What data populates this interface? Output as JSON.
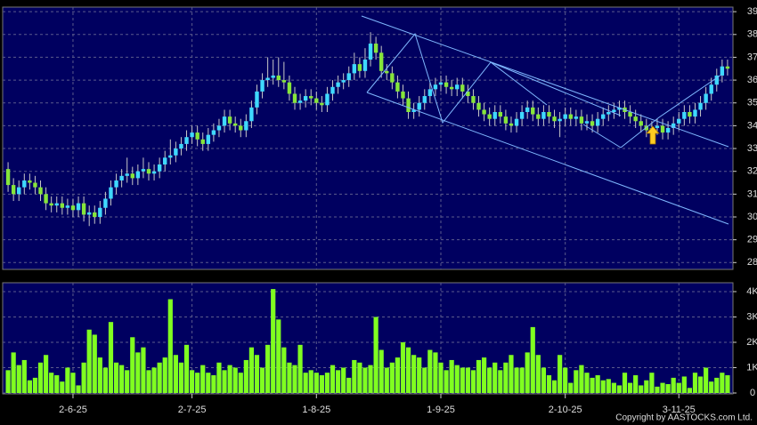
{
  "chart_data": [
    {
      "type": "candlestick",
      "up_color": "#3fd9ff",
      "down_color": "#86e63a",
      "grid": true,
      "ylim": [
        27.7,
        39.2
      ],
      "yticks": [
        28,
        29,
        30,
        31,
        32,
        33,
        34,
        35,
        36,
        37,
        38,
        39
      ],
      "xlim": [
        -1,
        134
      ],
      "xticks": [
        {
          "value": 12,
          "label": "2-6-25"
        },
        {
          "value": 34,
          "label": "2-7-25"
        },
        {
          "value": 57,
          "label": "1-8-25"
        },
        {
          "value": 80,
          "label": "1-9-25"
        },
        {
          "value": 103,
          "label": "2-10-25"
        },
        {
          "value": 124,
          "label": "3-11-25"
        }
      ],
      "ohlc": [
        [
          32.1,
          32.4,
          31.1,
          31.4
        ],
        [
          31.4,
          31.7,
          30.7,
          31.0
        ],
        [
          31.0,
          31.6,
          30.7,
          31.3
        ],
        [
          31.3,
          31.9,
          31.0,
          31.6
        ],
        [
          31.6,
          31.9,
          31.2,
          31.5
        ],
        [
          31.5,
          31.8,
          31.0,
          31.3
        ],
        [
          31.3,
          31.6,
          30.7,
          31.0
        ],
        [
          31.0,
          31.3,
          30.3,
          30.6
        ],
        [
          30.6,
          30.9,
          30.2,
          30.5
        ],
        [
          30.5,
          30.9,
          30.2,
          30.6
        ],
        [
          30.6,
          30.9,
          30.1,
          30.4
        ],
        [
          30.4,
          30.8,
          30.1,
          30.5
        ],
        [
          30.5,
          30.8,
          30.0,
          30.3
        ],
        [
          30.3,
          30.9,
          30.0,
          30.6
        ],
        [
          30.6,
          30.9,
          29.8,
          30.1
        ],
        [
          30.1,
          30.5,
          29.6,
          30.2
        ],
        [
          30.2,
          30.5,
          29.7,
          30.0
        ],
        [
          30.0,
          30.7,
          29.7,
          30.4
        ],
        [
          30.4,
          31.1,
          30.1,
          30.8
        ],
        [
          30.8,
          31.6,
          30.5,
          31.3
        ],
        [
          31.3,
          31.9,
          31.0,
          31.6
        ],
        [
          31.6,
          32.1,
          31.3,
          31.8
        ],
        [
          31.8,
          32.6,
          31.5,
          31.9
        ],
        [
          31.9,
          32.2,
          31.4,
          31.7
        ],
        [
          31.7,
          32.3,
          31.4,
          32.0
        ],
        [
          32.0,
          32.6,
          31.7,
          32.1
        ],
        [
          32.1,
          32.4,
          31.6,
          31.9
        ],
        [
          31.9,
          32.3,
          31.6,
          32.0
        ],
        [
          32.0,
          32.6,
          31.7,
          32.3
        ],
        [
          32.3,
          32.9,
          32.0,
          32.6
        ],
        [
          32.6,
          33.4,
          32.3,
          32.7
        ],
        [
          32.7,
          33.3,
          32.4,
          33.0
        ],
        [
          33.0,
          33.5,
          32.7,
          33.2
        ],
        [
          33.2,
          33.8,
          32.9,
          33.5
        ],
        [
          33.5,
          34.0,
          33.2,
          33.7
        ],
        [
          33.7,
          34.0,
          33.1,
          33.4
        ],
        [
          33.4,
          33.7,
          32.9,
          33.2
        ],
        [
          33.2,
          33.9,
          32.9,
          33.6
        ],
        [
          33.6,
          34.1,
          33.3,
          33.8
        ],
        [
          33.8,
          34.3,
          33.5,
          34.0
        ],
        [
          34.0,
          34.7,
          33.7,
          34.4
        ],
        [
          34.4,
          34.7,
          33.8,
          34.1
        ],
        [
          34.1,
          34.4,
          33.7,
          34.0
        ],
        [
          34.0,
          34.3,
          33.5,
          33.8
        ],
        [
          33.8,
          34.5,
          33.5,
          34.2
        ],
        [
          34.2,
          35.1,
          33.9,
          34.8
        ],
        [
          34.8,
          35.8,
          34.5,
          35.5
        ],
        [
          35.5,
          36.3,
          35.2,
          36.0
        ],
        [
          36.0,
          37.0,
          35.7,
          36.1
        ],
        [
          36.1,
          36.9,
          35.8,
          36.2
        ],
        [
          36.2,
          37.0,
          35.7,
          36.0
        ],
        [
          36.0,
          36.8,
          35.6,
          35.9
        ],
        [
          35.9,
          36.2,
          35.1,
          35.4
        ],
        [
          35.4,
          35.7,
          34.7,
          35.0
        ],
        [
          35.0,
          35.4,
          34.7,
          35.1
        ],
        [
          35.1,
          35.6,
          34.8,
          35.3
        ],
        [
          35.3,
          35.6,
          34.9,
          35.2
        ],
        [
          35.2,
          35.5,
          34.7,
          35.0
        ],
        [
          35.0,
          35.3,
          34.6,
          34.9
        ],
        [
          34.9,
          35.7,
          34.6,
          35.4
        ],
        [
          35.4,
          36.0,
          35.1,
          35.7
        ],
        [
          35.7,
          36.2,
          35.4,
          35.9
        ],
        [
          35.9,
          36.3,
          35.6,
          36.0
        ],
        [
          36.0,
          36.6,
          35.7,
          36.3
        ],
        [
          36.3,
          37.2,
          36.0,
          36.7
        ],
        [
          36.7,
          37.0,
          36.1,
          36.4
        ],
        [
          36.4,
          37.4,
          36.1,
          36.9
        ],
        [
          36.9,
          38.1,
          36.6,
          37.6
        ],
        [
          37.6,
          37.9,
          36.9,
          37.2
        ],
        [
          37.2,
          37.5,
          36.1,
          36.4
        ],
        [
          36.4,
          36.7,
          36.0,
          36.3
        ],
        [
          36.3,
          36.6,
          35.6,
          35.9
        ],
        [
          35.9,
          36.2,
          35.2,
          35.5
        ],
        [
          35.5,
          35.8,
          34.9,
          35.2
        ],
        [
          35.2,
          35.5,
          34.3,
          34.6
        ],
        [
          34.6,
          35.0,
          34.3,
          34.7
        ],
        [
          34.7,
          35.3,
          34.4,
          35.0
        ],
        [
          35.0,
          35.6,
          34.7,
          35.3
        ],
        [
          35.3,
          35.9,
          35.0,
          35.6
        ],
        [
          35.6,
          36.1,
          35.3,
          35.8
        ],
        [
          35.8,
          36.2,
          35.5,
          35.9
        ],
        [
          35.9,
          36.2,
          35.4,
          35.7
        ],
        [
          35.7,
          36.0,
          35.3,
          35.6
        ],
        [
          35.6,
          36.1,
          35.3,
          35.8
        ],
        [
          35.8,
          36.1,
          35.2,
          35.5
        ],
        [
          35.5,
          35.8,
          35.0,
          35.3
        ],
        [
          35.3,
          35.6,
          34.7,
          35.0
        ],
        [
          35.0,
          35.3,
          34.4,
          34.7
        ],
        [
          34.7,
          35.0,
          34.2,
          34.5
        ],
        [
          34.5,
          34.8,
          34.0,
          34.3
        ],
        [
          34.3,
          34.9,
          34.0,
          34.6
        ],
        [
          34.6,
          34.9,
          34.1,
          34.4
        ],
        [
          34.4,
          34.7,
          33.8,
          34.1
        ],
        [
          34.1,
          34.4,
          33.7,
          34.0
        ],
        [
          34.0,
          34.6,
          33.7,
          34.3
        ],
        [
          34.3,
          34.9,
          34.0,
          34.6
        ],
        [
          34.6,
          35.1,
          34.3,
          34.8
        ],
        [
          34.8,
          35.1,
          34.2,
          34.5
        ],
        [
          34.5,
          34.8,
          34.0,
          34.3
        ],
        [
          34.3,
          34.9,
          34.0,
          34.6
        ],
        [
          34.6,
          34.9,
          34.1,
          34.4
        ],
        [
          34.4,
          34.7,
          33.9,
          34.2
        ],
        [
          34.2,
          34.6,
          33.5,
          34.3
        ],
        [
          34.3,
          34.8,
          34.0,
          34.5
        ],
        [
          34.5,
          34.8,
          34.0,
          34.3
        ],
        [
          34.3,
          34.7,
          34.0,
          34.4
        ],
        [
          34.4,
          34.7,
          33.8,
          34.1
        ],
        [
          34.1,
          34.5,
          33.8,
          34.2
        ],
        [
          34.2,
          34.5,
          33.7,
          34.0
        ],
        [
          34.0,
          34.6,
          33.7,
          34.3
        ],
        [
          34.3,
          34.8,
          34.0,
          34.5
        ],
        [
          34.5,
          34.9,
          34.2,
          34.6
        ],
        [
          34.6,
          35.0,
          34.3,
          34.7
        ],
        [
          34.7,
          35.1,
          34.4,
          34.8
        ],
        [
          34.8,
          35.1,
          34.3,
          34.6
        ],
        [
          34.6,
          34.9,
          34.1,
          34.4
        ],
        [
          34.4,
          34.7,
          33.9,
          34.2
        ],
        [
          34.2,
          34.5,
          33.7,
          34.0
        ],
        [
          34.0,
          34.3,
          33.5,
          33.8
        ],
        [
          33.8,
          34.2,
          33.5,
          33.9
        ],
        [
          33.9,
          34.3,
          33.6,
          34.0
        ],
        [
          34.0,
          34.3,
          33.4,
          33.7
        ],
        [
          33.7,
          34.2,
          33.4,
          33.9
        ],
        [
          33.9,
          34.4,
          33.6,
          34.1
        ],
        [
          34.1,
          34.6,
          33.8,
          34.3
        ],
        [
          34.3,
          34.9,
          34.0,
          34.6
        ],
        [
          34.6,
          34.9,
          34.1,
          34.4
        ],
        [
          34.4,
          35.0,
          34.1,
          34.7
        ],
        [
          34.7,
          35.3,
          34.4,
          35.0
        ],
        [
          35.0,
          35.7,
          34.7,
          35.4
        ],
        [
          35.4,
          36.1,
          35.1,
          35.8
        ],
        [
          35.8,
          36.5,
          35.5,
          36.2
        ],
        [
          36.2,
          36.9,
          35.9,
          36.6
        ],
        [
          36.6,
          36.9,
          36.2,
          36.5
        ]
      ]
    },
    {
      "type": "bar",
      "color": "#80ff20",
      "grid": true,
      "ylim": [
        0,
        4350
      ],
      "yticks": [
        0,
        {
          "value": 1000,
          "label": "1K"
        },
        {
          "value": 2000,
          "label": "2K"
        },
        {
          "value": 3000,
          "label": "3K"
        },
        {
          "value": 4000,
          "label": "4K"
        }
      ],
      "values": [
        900,
        1600,
        1100,
        1300,
        500,
        600,
        1200,
        1500,
        800,
        700,
        450,
        1000,
        800,
        300,
        1200,
        2500,
        2300,
        1400,
        1000,
        2800,
        1200,
        1100,
        900,
        2200,
        1600,
        1800,
        900,
        1000,
        1200,
        1400,
        3700,
        1500,
        1200,
        1900,
        900,
        800,
        1100,
        800,
        700,
        1200,
        900,
        1100,
        1000,
        800,
        1300,
        1800,
        1500,
        1000,
        1900,
        4100,
        2900,
        1800,
        1200,
        1100,
        1900,
        800,
        900,
        800,
        700,
        800,
        1100,
        900,
        1000,
        600,
        1300,
        1200,
        1000,
        1100,
        3000,
        1700,
        1000,
        1200,
        1400,
        2000,
        1800,
        1500,
        1400,
        1000,
        1700,
        1600,
        1200,
        900,
        1300,
        1100,
        1000,
        1000,
        900,
        1300,
        1400,
        1000,
        1200,
        900,
        1200,
        1500,
        1000,
        1000,
        1600,
        2600,
        1500,
        1000,
        700,
        500,
        1500,
        1000,
        400,
        900,
        1100,
        800,
        600,
        700,
        500,
        550,
        400,
        300,
        800,
        400,
        700,
        300,
        500,
        800,
        250,
        400,
        350,
        600,
        400,
        650,
        200,
        800,
        650,
        1000,
        450,
        600,
        800,
        700
      ],
      "footnote": "Copyright by AASTOCKS.com Ltd."
    }
  ]
}
